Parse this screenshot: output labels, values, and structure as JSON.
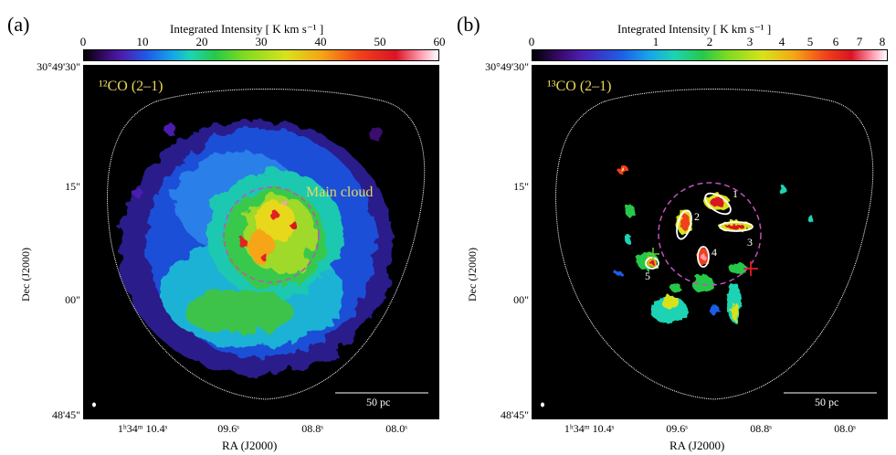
{
  "panel_a": {
    "letter": "(a)",
    "colorbar_title": "Integrated Intensity [ K km s⁻¹ ]",
    "colorbar_ticks": [
      "0",
      "10",
      "20",
      "30",
      "40",
      "50",
      "60"
    ],
    "molecule_label": "¹²CO (2–1)",
    "region_label": "Main cloud",
    "scalebar": "50 pc",
    "ylabel": "Dec (J2000)",
    "xlabel": "RA (J2000)",
    "yticks": [
      "30°49'30\"",
      "15\"",
      "00\"",
      "48'45\""
    ],
    "xticks": [
      "1ʰ34ᵐ 10.4ˢ",
      "09.6ˢ",
      "08.8ˢ",
      "08.0ˢ"
    ]
  },
  "panel_b": {
    "letter": "(b)",
    "colorbar_title": "Integrated Intensity [ K km s⁻¹ ]",
    "colorbar_ticks": [
      "0",
      "1",
      "2",
      "3",
      "4",
      "5",
      "6",
      "7",
      "8"
    ],
    "molecule_label": "¹³CO (2–1)",
    "clump_labels": [
      "1",
      "2",
      "3",
      "4",
      "5"
    ],
    "scalebar": "50 pc",
    "ylabel": "Dec (J2000)",
    "xlabel": "RA (J2000)",
    "yticks": [
      "30°49'30\"",
      "15\"",
      "00\"",
      "48'45\""
    ],
    "xticks": [
      "1ʰ34ᵐ 10.4ˢ",
      "09.6ˢ",
      "08.8ˢ",
      "08.0ˢ"
    ]
  },
  "colors": {
    "background": "#000000",
    "label_yellow": "#e8d85a",
    "contour": "#ffffff",
    "circle": "#c050c0"
  }
}
